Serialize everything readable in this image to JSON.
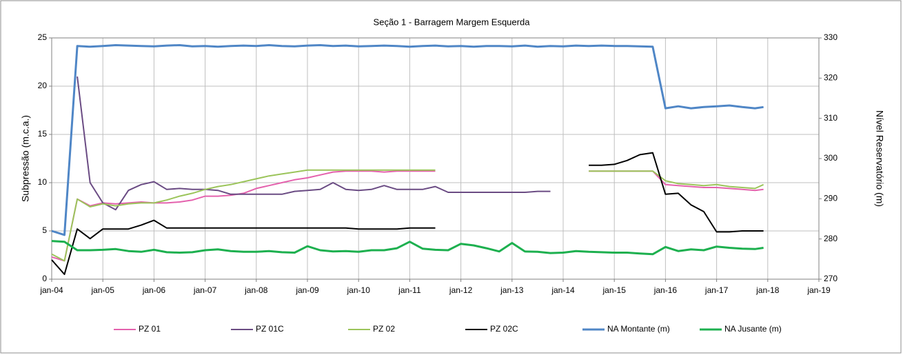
{
  "chart_data": {
    "type": "line",
    "title": "Seção 1 - Barragem Margem Esquerda",
    "y_label": "Subpressão (m.c.a.)",
    "y2_label": "Nível Reservatório (m)",
    "x": [
      "2004-01",
      "2004-04",
      "2004-07",
      "2004-10",
      "2005-01",
      "2005-04",
      "2005-07",
      "2005-10",
      "2006-01",
      "2006-04",
      "2006-07",
      "2006-10",
      "2007-01",
      "2007-04",
      "2007-07",
      "2007-10",
      "2008-01",
      "2008-04",
      "2008-07",
      "2008-10",
      "2009-01",
      "2009-04",
      "2009-07",
      "2009-10",
      "2010-01",
      "2010-04",
      "2010-07",
      "2010-10",
      "2011-01",
      "2011-04",
      "2011-07",
      "2011-10",
      "2012-01",
      "2012-04",
      "2012-07",
      "2012-10",
      "2013-01",
      "2013-04",
      "2013-07",
      "2013-10",
      "2014-01",
      "2014-04",
      "2014-07",
      "2014-10",
      "2015-01",
      "2015-04",
      "2015-07",
      "2015-10",
      "2016-01",
      "2016-04",
      "2016-07",
      "2016-10",
      "2017-01",
      "2017-04",
      "2017-07",
      "2017-10",
      "2017-12"
    ],
    "xlim": [
      "2004-01",
      "2019-01"
    ],
    "xticks": [
      {
        "value": "2004-01",
        "label": "jan-04"
      },
      {
        "value": "2005-01",
        "label": "jan-05"
      },
      {
        "value": "2006-01",
        "label": "jan-06"
      },
      {
        "value": "2007-01",
        "label": "jan-07"
      },
      {
        "value": "2008-01",
        "label": "jan-08"
      },
      {
        "value": "2009-01",
        "label": "jan-09"
      },
      {
        "value": "2010-01",
        "label": "jan-10"
      },
      {
        "value": "2011-01",
        "label": "jan-11"
      },
      {
        "value": "2012-01",
        "label": "jan-12"
      },
      {
        "value": "2013-01",
        "label": "jan-13"
      },
      {
        "value": "2014-01",
        "label": "jan-14"
      },
      {
        "value": "2015-01",
        "label": "jan-15"
      },
      {
        "value": "2016-01",
        "label": "jan-16"
      },
      {
        "value": "2017-01",
        "label": "jan-17"
      },
      {
        "value": "2018-01",
        "label": "jan-18"
      },
      {
        "value": "2019-01",
        "label": "jan-19"
      }
    ],
    "ylim": [
      0,
      25
    ],
    "yticks": [
      0,
      5,
      10,
      15,
      20,
      25
    ],
    "y2lim": [
      270,
      330
    ],
    "y2ticks": [
      270,
      280,
      290,
      300,
      310,
      320,
      330
    ],
    "grid": true,
    "legend": "bottom",
    "series": [
      {
        "name": "PZ 01",
        "color": "#e461ad",
        "values": [
          2.3,
          1.9,
          8.3,
          7.6,
          7.9,
          7.8,
          7.9,
          8.0,
          7.9,
          7.9,
          8.0,
          8.2,
          8.6,
          8.6,
          8.7,
          8.9,
          9.4,
          9.7,
          10.0,
          10.3,
          10.5,
          10.8,
          11.1,
          11.2,
          11.2,
          11.2,
          11.1,
          11.2,
          11.2,
          11.2,
          11.2,
          null,
          null,
          null,
          null,
          null,
          null,
          null,
          null,
          null,
          null,
          null,
          11.2,
          11.2,
          11.2,
          11.2,
          11.2,
          11.2,
          9.8,
          9.7,
          9.6,
          9.5,
          9.5,
          9.4,
          9.3,
          9.2,
          9.3
        ]
      },
      {
        "name": "PZ 01C",
        "color": "#6a4b83",
        "values": [
          null,
          null,
          21,
          10,
          7.9,
          7.2,
          9.2,
          9.8,
          10.1,
          9.3,
          9.4,
          9.3,
          9.3,
          9.2,
          8.8,
          8.8,
          8.8,
          8.8,
          8.8,
          9.1,
          9.2,
          9.3,
          10.0,
          9.3,
          9.2,
          9.3,
          9.7,
          9.3,
          9.3,
          9.3,
          9.6,
          9.0,
          9.0,
          9.0,
          9.0,
          9.0,
          9.0,
          9.0,
          9.1,
          9.1,
          null,
          null,
          null,
          null,
          null,
          null,
          null,
          null,
          null,
          null,
          null,
          null,
          null,
          null,
          null,
          null,
          null
        ]
      },
      {
        "name": "PZ 02",
        "color": "#9bc45a",
        "values": [
          2.6,
          1.9,
          8.3,
          7.5,
          7.8,
          7.6,
          7.8,
          7.9,
          7.9,
          8.2,
          8.6,
          8.9,
          9.3,
          9.6,
          9.8,
          10.1,
          10.4,
          10.7,
          10.9,
          11.1,
          11.3,
          11.3,
          11.3,
          11.3,
          11.3,
          11.3,
          11.3,
          11.3,
          11.3,
          11.3,
          11.3,
          null,
          null,
          null,
          null,
          null,
          null,
          null,
          null,
          null,
          null,
          null,
          11.2,
          11.2,
          11.2,
          11.2,
          11.2,
          11.2,
          10.2,
          9.9,
          9.8,
          9.7,
          9.8,
          9.6,
          9.5,
          9.4,
          9.8
        ]
      },
      {
        "name": "PZ 02C",
        "color": "#000000",
        "values": [
          2.0,
          0.5,
          5.2,
          4.2,
          5.2,
          5.2,
          5.2,
          5.6,
          6.1,
          5.3,
          5.3,
          5.3,
          5.3,
          5.3,
          5.3,
          5.3,
          5.3,
          5.3,
          5.3,
          5.3,
          5.3,
          5.3,
          5.3,
          5.3,
          5.2,
          5.2,
          5.2,
          5.2,
          5.3,
          5.3,
          5.3,
          null,
          null,
          null,
          null,
          null,
          null,
          null,
          null,
          null,
          null,
          null,
          11.8,
          11.8,
          11.9,
          12.3,
          12.9,
          13.1,
          8.8,
          8.9,
          7.7,
          7.0,
          4.9,
          4.9,
          5.0,
          5.0,
          5.0
        ]
      },
      {
        "name": "NA Montante (m)",
        "color": "#4f86c6",
        "axis": "y2",
        "values": [
          282,
          281,
          328,
          327.8,
          328,
          328.2,
          328.1,
          328,
          327.9,
          328.1,
          328.2,
          327.9,
          328,
          327.8,
          328,
          328.1,
          328,
          328.2,
          328,
          327.9,
          328.1,
          328.2,
          328,
          328.1,
          327.9,
          328,
          328.1,
          328,
          327.8,
          328,
          328.1,
          327.9,
          328,
          327.8,
          328,
          328,
          327.9,
          328.1,
          327.8,
          328,
          327.9,
          328.1,
          328,
          328.1,
          328,
          328,
          327.9,
          327.8,
          312.5,
          313,
          312.5,
          312.8,
          313,
          313.2,
          312.8,
          312.5,
          312.8
        ]
      },
      {
        "name": "NA Jusante (m)",
        "color": "#1db04f",
        "axis": "y2",
        "values": [
          279.5,
          279.3,
          277.2,
          277.2,
          277.3,
          277.5,
          277.0,
          276.8,
          277.3,
          276.7,
          276.6,
          276.7,
          277.2,
          277.4,
          277.0,
          276.8,
          276.8,
          277.0,
          276.7,
          276.6,
          278.2,
          277.2,
          276.9,
          277.0,
          276.8,
          277.2,
          277.2,
          277.7,
          279.3,
          277.6,
          277.3,
          277.2,
          278.8,
          278.4,
          277.7,
          276.9,
          279.0,
          276.9,
          276.8,
          276.5,
          276.6,
          277.0,
          276.8,
          276.7,
          276.6,
          276.6,
          276.4,
          276.2,
          278.0,
          277.0,
          277.4,
          277.2,
          278.1,
          277.8,
          277.6,
          277.5,
          277.8
        ]
      }
    ]
  }
}
